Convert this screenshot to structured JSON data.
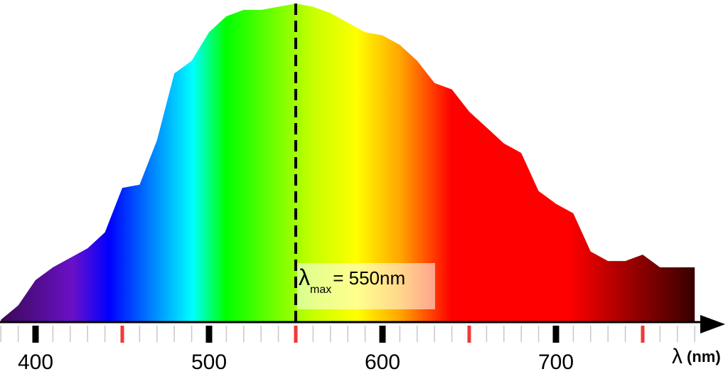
{
  "chart_data": {
    "type": "area",
    "x": [
      380,
      390,
      400,
      410,
      420,
      430,
      440,
      450,
      460,
      470,
      480,
      490,
      500,
      510,
      520,
      530,
      540,
      550,
      560,
      570,
      580,
      590,
      600,
      610,
      620,
      630,
      640,
      650,
      660,
      670,
      680,
      690,
      700,
      710,
      720,
      730,
      740,
      750,
      760,
      770,
      780
    ],
    "values": [
      0.5,
      5,
      13,
      17,
      20,
      23,
      28,
      42,
      43,
      57,
      78,
      82,
      91,
      96,
      98,
      98,
      99,
      100,
      99,
      97,
      94,
      91,
      90,
      87,
      82,
      75,
      73,
      66,
      61,
      56,
      53,
      41,
      37,
      34,
      22,
      19,
      19,
      21,
      17,
      17,
      17
    ],
    "xlim": [
      380,
      790
    ],
    "ylim": [
      0,
      100
    ],
    "xticks": [
      400,
      500,
      600,
      700
    ],
    "xticks_highlight": [
      450,
      550,
      650,
      750
    ],
    "xticks_minor": [
      380,
      390,
      410,
      420,
      430,
      440,
      460,
      470,
      480,
      490,
      510,
      520,
      530,
      540,
      560,
      570,
      580,
      590,
      610,
      620,
      630,
      640,
      660,
      670,
      680,
      690,
      710,
      720,
      730,
      740,
      760,
      770,
      780
    ],
    "x_label": {
      "symbol": "λ",
      "unit": "(nm)"
    },
    "peak": {
      "x": 550,
      "symbol": "λ",
      "subscript": "max",
      "text": "= 550nm"
    }
  }
}
